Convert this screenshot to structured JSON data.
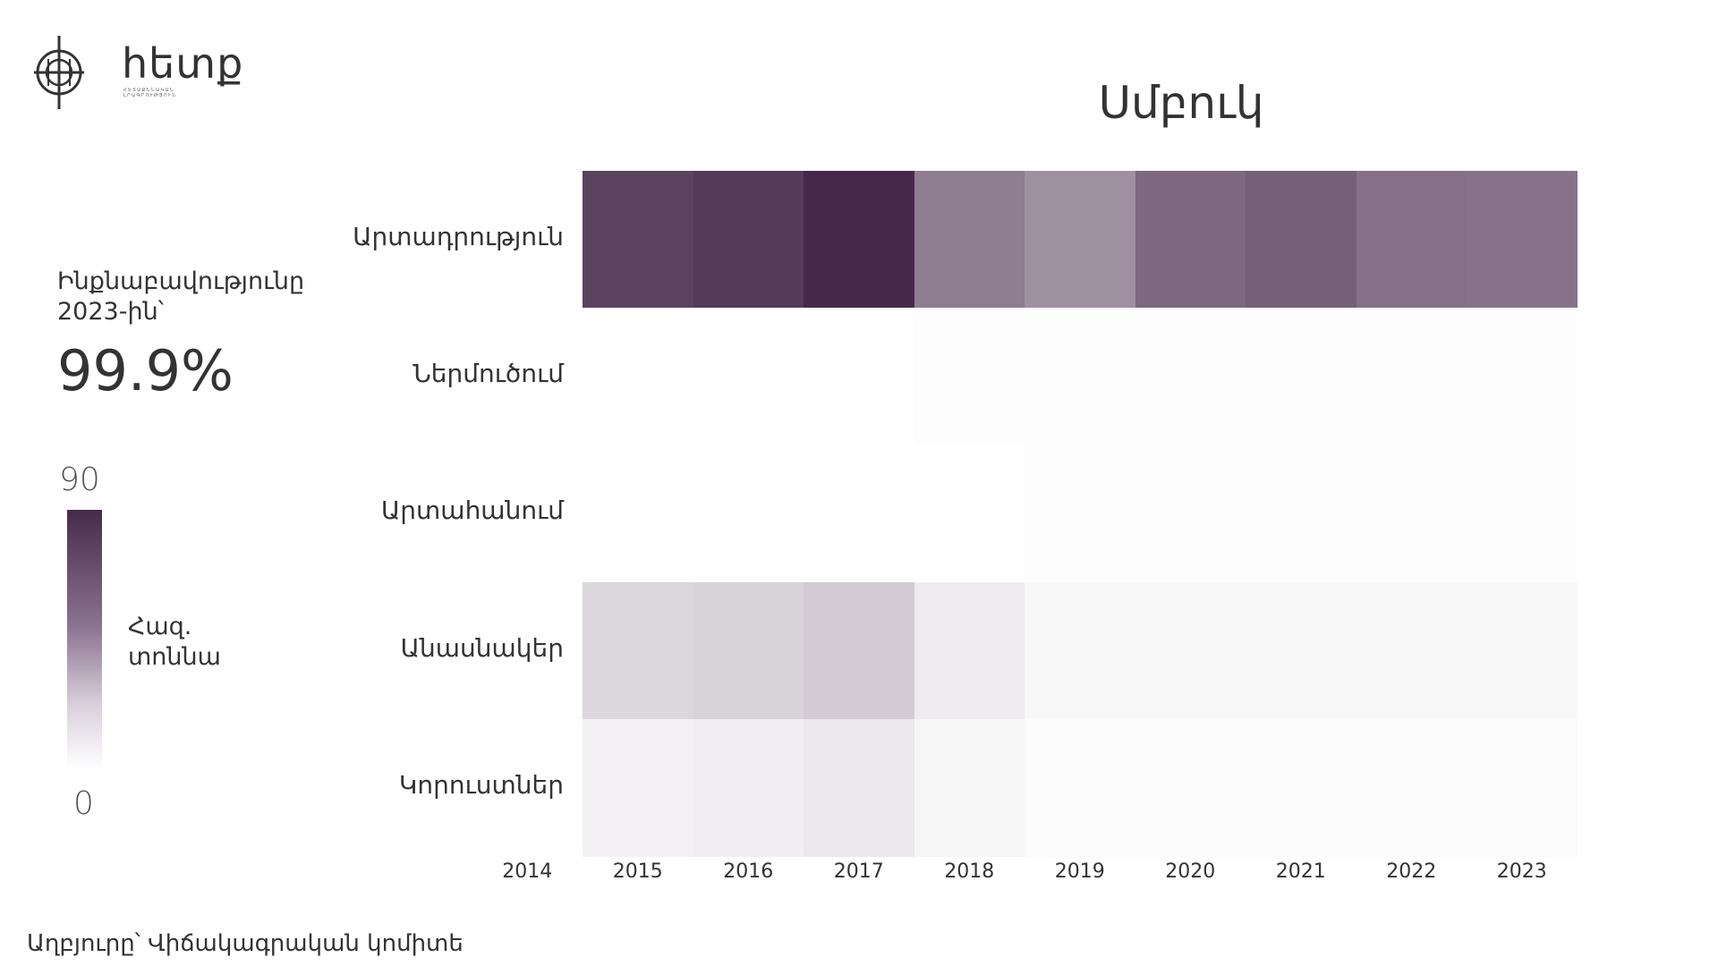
{
  "brand": {
    "name": "հետք",
    "tagline": "ՀԵՏԱՔՆՆԱԿԱՆ ԼՐԱԳՐՈՒԹՅՈՒՆ"
  },
  "kpi": {
    "label": "Ինքնաբավությունը 2023-ին՝",
    "value": "99.9%"
  },
  "legend": {
    "max_label": "90",
    "min_label": "0",
    "unit": "Հազ. տոննա",
    "color_max": "#472a4b",
    "color_min": "#ffffff"
  },
  "source": "Աղբյուրը՝ Վիճակագրական կոմիտե",
  "chart_data": {
    "type": "heatmap",
    "title": "Սմբուկ",
    "x_labels": [
      "2014",
      "2015",
      "2016",
      "2017",
      "2018",
      "2019",
      "2020",
      "2021",
      "2022",
      "2023"
    ],
    "y_labels": [
      "Արտադրություն",
      "Ներմուծում",
      "Արտահանում",
      "Անասնակեր",
      "Կորուստներ"
    ],
    "value_range": [
      0,
      90
    ],
    "values": [
      [
        null,
        80,
        83,
        90,
        55,
        47,
        64,
        67,
        60,
        59
      ],
      [
        null,
        0,
        0,
        0,
        1,
        1,
        1,
        1,
        1,
        1
      ],
      [
        null,
        0,
        0.5,
        0.5,
        0,
        1,
        1,
        1,
        1,
        1
      ],
      [
        null,
        17,
        19,
        22,
        8,
        3,
        3,
        3,
        3,
        3
      ],
      [
        null,
        6,
        7,
        10,
        4,
        1.5,
        1.5,
        1.5,
        1.5,
        1.5
      ]
    ]
  }
}
